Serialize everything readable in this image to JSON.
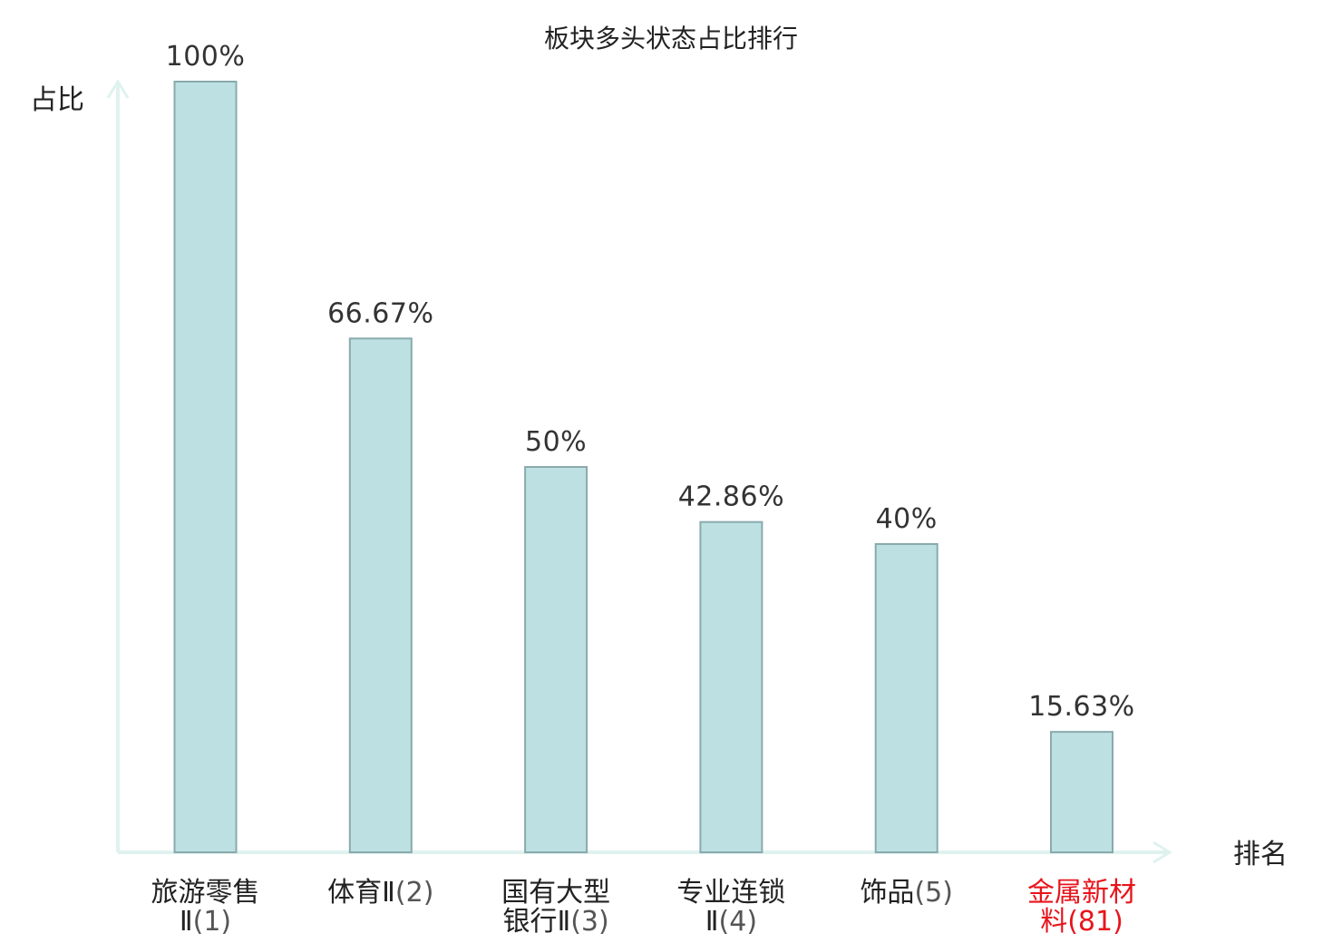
{
  "chart_data": {
    "type": "bar",
    "title": "板块多头状态占比排行",
    "ylabel": "占比",
    "xlabel": "排名",
    "ylim": [
      0,
      100
    ],
    "grid": false,
    "bars": [
      {
        "name_lines": [
          "旅游零售"
        ],
        "rank_prefix": "Ⅱ",
        "rank": "(1)",
        "value": 100,
        "label": "100%",
        "highlight": false
      },
      {
        "name_lines": [],
        "rank_prefix": "体育Ⅱ",
        "rank": "(2)",
        "value": 66.67,
        "label": "66.67%",
        "highlight": false
      },
      {
        "name_lines": [
          "国有大型"
        ],
        "rank_prefix": "银行Ⅱ",
        "rank": "(3)",
        "value": 50,
        "label": "50%",
        "highlight": false
      },
      {
        "name_lines": [
          "专业连锁"
        ],
        "rank_prefix": "Ⅱ",
        "rank": "(4)",
        "value": 42.86,
        "label": "42.86%",
        "highlight": false
      },
      {
        "name_lines": [],
        "rank_prefix": "饰品",
        "rank": "(5)",
        "value": 40,
        "label": "40%",
        "highlight": false
      },
      {
        "name_lines": [
          "金属新材"
        ],
        "rank_prefix": "料",
        "rank": "(81)",
        "value": 15.63,
        "label": "15.63%",
        "highlight": true
      }
    ]
  },
  "colors": {
    "bar_fill": "#bde0e3",
    "bar_stroke": "#8aaaad",
    "axis": "#dff2ef",
    "text": "#222222",
    "rank_text": "#555555",
    "highlight": "#e8141c"
  }
}
